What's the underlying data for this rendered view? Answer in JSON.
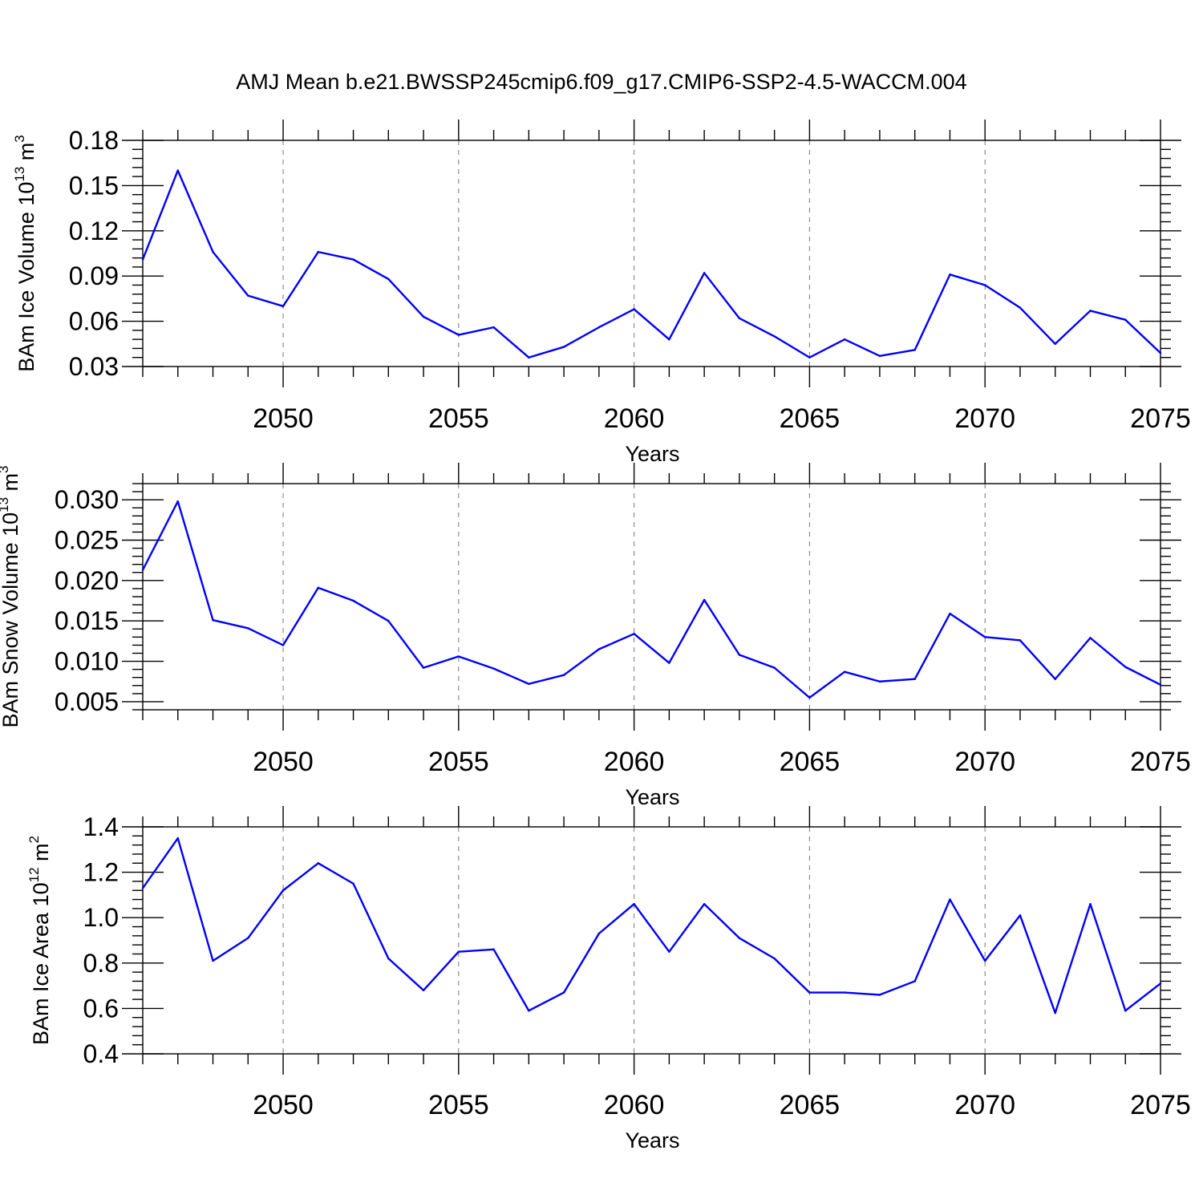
{
  "title": "AMJ Mean b.e21.BWSSP245cmip6.f09_g17.CMIP6-SSP2-4.5-WACCM.004",
  "colors": {
    "line": "#0000ff",
    "axis": "#000000",
    "grid": "#777777"
  },
  "chart_data": [
    {
      "type": "line",
      "xlabel": "Years",
      "ylabel": {
        "prefix": "BAm Ice Volume 10",
        "exp": "13",
        "unit": " m",
        "unit_exp": "3"
      },
      "xlim": [
        2046,
        2075
      ],
      "ylim": [
        0.03,
        0.18
      ],
      "xticks": [
        2050,
        2055,
        2060,
        2065,
        2070,
        2075
      ],
      "xtick_labels": [
        "2050",
        "2055",
        "2060",
        "2065",
        "2070",
        "2075"
      ],
      "yticks": [
        0.03,
        0.06,
        0.09,
        0.12,
        0.15,
        0.18
      ],
      "ytick_labels": [
        "0.03",
        "0.06",
        "0.09",
        "0.12",
        "0.15",
        "0.18"
      ],
      "y_minor_step": 0.006,
      "grid": "vertical-dashed",
      "x": [
        2046,
        2047,
        2048,
        2049,
        2050,
        2051,
        2052,
        2053,
        2054,
        2055,
        2056,
        2057,
        2058,
        2059,
        2060,
        2061,
        2062,
        2063,
        2064,
        2065,
        2066,
        2067,
        2068,
        2069,
        2070,
        2071,
        2072,
        2073,
        2074,
        2075
      ],
      "values": [
        0.101,
        0.16,
        0.106,
        0.077,
        0.07,
        0.106,
        0.101,
        0.088,
        0.063,
        0.051,
        0.056,
        0.036,
        0.043,
        0.056,
        0.068,
        0.048,
        0.092,
        0.062,
        0.05,
        0.036,
        0.048,
        0.037,
        0.041,
        0.091,
        0.084,
        0.069,
        0.045,
        0.067,
        0.061,
        0.039
      ]
    },
    {
      "type": "line",
      "xlabel": "Years",
      "ylabel": {
        "prefix": "BAm Snow Volume 10",
        "exp": "13",
        "unit": " m",
        "unit_exp": "3"
      },
      "xlim": [
        2046,
        2075
      ],
      "ylim": [
        0.004,
        0.032
      ],
      "xticks": [
        2050,
        2055,
        2060,
        2065,
        2070,
        2075
      ],
      "xtick_labels": [
        "2050",
        "2055",
        "2060",
        "2065",
        "2070",
        "2075"
      ],
      "yticks": [
        0.005,
        0.01,
        0.015,
        0.02,
        0.025,
        0.03
      ],
      "ytick_labels": [
        "0.005",
        "0.010",
        "0.015",
        "0.020",
        "0.025",
        "0.030"
      ],
      "y_minor_step": 0.001,
      "grid": "vertical-dashed",
      "x": [
        2046,
        2047,
        2048,
        2049,
        2050,
        2051,
        2052,
        2053,
        2054,
        2055,
        2056,
        2057,
        2058,
        2059,
        2060,
        2061,
        2062,
        2063,
        2064,
        2065,
        2066,
        2067,
        2068,
        2069,
        2070,
        2071,
        2072,
        2073,
        2074,
        2075
      ],
      "values": [
        0.0213,
        0.0298,
        0.0151,
        0.0141,
        0.012,
        0.0191,
        0.0175,
        0.015,
        0.0092,
        0.0106,
        0.0091,
        0.0072,
        0.0083,
        0.0115,
        0.0134,
        0.0098,
        0.0176,
        0.0108,
        0.0092,
        0.0055,
        0.0087,
        0.0075,
        0.0078,
        0.0159,
        0.013,
        0.0126,
        0.0078,
        0.0129,
        0.0093,
        0.0071
      ]
    },
    {
      "type": "line",
      "xlabel": "Years",
      "ylabel": {
        "prefix": "BAm Ice Area 10",
        "exp": "12",
        "unit": " m",
        "unit_exp": "2"
      },
      "xlim": [
        2046,
        2075
      ],
      "ylim": [
        0.4,
        1.4
      ],
      "xticks": [
        2050,
        2055,
        2060,
        2065,
        2070,
        2075
      ],
      "xtick_labels": [
        "2050",
        "2055",
        "2060",
        "2065",
        "2070",
        "2075"
      ],
      "yticks": [
        0.4,
        0.6,
        0.8,
        1.0,
        1.2,
        1.4
      ],
      "ytick_labels": [
        "0.4",
        "0.6",
        "0.8",
        "1.0",
        "1.2",
        "1.4"
      ],
      "y_minor_step": 0.04,
      "grid": "vertical-dashed",
      "x": [
        2046,
        2047,
        2048,
        2049,
        2050,
        2051,
        2052,
        2053,
        2054,
        2055,
        2056,
        2057,
        2058,
        2059,
        2060,
        2061,
        2062,
        2063,
        2064,
        2065,
        2066,
        2067,
        2068,
        2069,
        2070,
        2071,
        2072,
        2073,
        2074,
        2075
      ],
      "values": [
        1.13,
        1.35,
        0.81,
        0.91,
        1.12,
        1.24,
        1.15,
        0.82,
        0.68,
        0.85,
        0.86,
        0.59,
        0.67,
        0.93,
        1.06,
        0.85,
        1.06,
        0.91,
        0.82,
        0.67,
        0.67,
        0.66,
        0.72,
        1.08,
        0.81,
        1.01,
        0.58,
        1.06,
        0.59,
        0.71
      ]
    }
  ]
}
